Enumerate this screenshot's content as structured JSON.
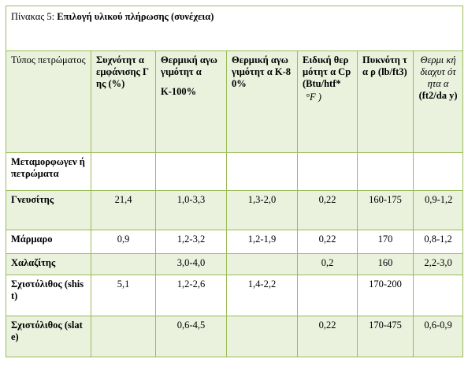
{
  "caption": {
    "prefix": "Πίνακας 5: ",
    "title": "Επιλογή υλικού πλήρωσης (συνέχεια)"
  },
  "columns": [
    "Τύπος πετρώματος",
    "Συχνότητ α εμφάνισης Γης (%)",
    "Θερμική αγωγιμότητ α",
    "Κ-100%",
    "Θερμική αγωγιμότητ α Κ-80%",
    "Ειδική θερμότητ α Cp (Btu/htf*",
    "°F )",
    "Πυκνότη τα ρ (lb/ft3)",
    "Θερμι κή διαχυτ ότητα α",
    "(ft2/da y)"
  ],
  "rows": [
    {
      "name": "Μεταμορφωγεν ή πετρώματα",
      "freq": "",
      "k100": "",
      "k80": "",
      "cp": "",
      "rho": "",
      "alpha": ""
    },
    {
      "name": "Γνευσίτης",
      "freq": "21,4",
      "k100": "1,0-3,3",
      "k80": "1,3-2,0",
      "cp": "0,22",
      "rho": "160-175",
      "alpha": "0,9-1,2"
    },
    {
      "name": "Μάρμαρο",
      "freq": "0,9",
      "k100": "1,2-3,2",
      "k80": "1,2-1,9",
      "cp": "0,22",
      "rho": "170",
      "alpha": "0,8-1,2"
    },
    {
      "name": "Χαλαζίτης",
      "freq": "",
      "k100": "3,0-4,0",
      "k80": "",
      "cp": "0,2",
      "rho": "160",
      "alpha": "2,2-3,0"
    },
    {
      "name": "Σχιστόλιθος (shist)",
      "freq": "5,1",
      "k100": "1,2-2,6",
      "k80": "1,4-2,2",
      "cp": "",
      "rho": "170-200",
      "alpha": ""
    },
    {
      "name": "Σχιστόλιθος (slate)",
      "freq": "",
      "k100": "0,6-4,5",
      "k80": "",
      "cp": "0,22",
      "rho": "170-475",
      "alpha": "0,6-0,9"
    }
  ]
}
